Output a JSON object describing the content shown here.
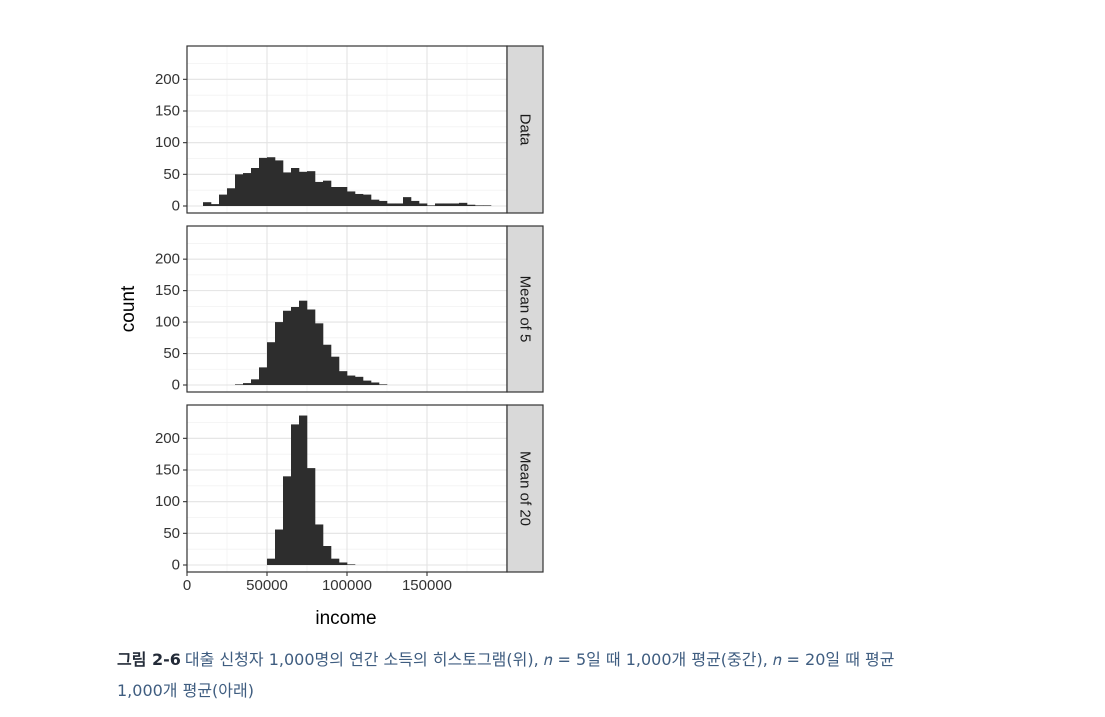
{
  "chart_data": {
    "type": "bar",
    "subtype": "faceted-histogram",
    "xlabel": "income",
    "ylabel": "count",
    "xlim": [
      0,
      200000
    ],
    "ylim": [
      0,
      240
    ],
    "x_ticks": [
      0,
      50000,
      100000,
      150000
    ],
    "x_tick_labels": [
      "0",
      "50000",
      "100000",
      "150000"
    ],
    "y_ticks": [
      0,
      50,
      100,
      150,
      200
    ],
    "y_tick_labels": [
      "0",
      "50",
      "100",
      "150",
      "200"
    ],
    "grid": true,
    "facets": [
      {
        "label": "Data",
        "bin_width": 5000,
        "bins": [
          {
            "x0": 10000,
            "count": 6
          },
          {
            "x0": 15000,
            "count": 3
          },
          {
            "x0": 20000,
            "count": 18
          },
          {
            "x0": 25000,
            "count": 28
          },
          {
            "x0": 30000,
            "count": 50
          },
          {
            "x0": 35000,
            "count": 52
          },
          {
            "x0": 40000,
            "count": 60
          },
          {
            "x0": 45000,
            "count": 76
          },
          {
            "x0": 50000,
            "count": 77
          },
          {
            "x0": 55000,
            "count": 72
          },
          {
            "x0": 60000,
            "count": 53
          },
          {
            "x0": 65000,
            "count": 60
          },
          {
            "x0": 70000,
            "count": 54
          },
          {
            "x0": 75000,
            "count": 55
          },
          {
            "x0": 80000,
            "count": 38
          },
          {
            "x0": 85000,
            "count": 40
          },
          {
            "x0": 90000,
            "count": 30
          },
          {
            "x0": 95000,
            "count": 30
          },
          {
            "x0": 100000,
            "count": 23
          },
          {
            "x0": 105000,
            "count": 19
          },
          {
            "x0": 110000,
            "count": 18
          },
          {
            "x0": 115000,
            "count": 10
          },
          {
            "x0": 120000,
            "count": 8
          },
          {
            "x0": 125000,
            "count": 4
          },
          {
            "x0": 130000,
            "count": 4
          },
          {
            "x0": 135000,
            "count": 14
          },
          {
            "x0": 140000,
            "count": 8
          },
          {
            "x0": 145000,
            "count": 4
          },
          {
            "x0": 150000,
            "count": 1
          },
          {
            "x0": 155000,
            "count": 4
          },
          {
            "x0": 160000,
            "count": 4
          },
          {
            "x0": 165000,
            "count": 4
          },
          {
            "x0": 170000,
            "count": 5
          },
          {
            "x0": 175000,
            "count": 2
          },
          {
            "x0": 180000,
            "count": 1
          },
          {
            "x0": 185000,
            "count": 1
          }
        ]
      },
      {
        "label": "Mean of 5",
        "bin_width": 5000,
        "bins": [
          {
            "x0": 30000,
            "count": 1
          },
          {
            "x0": 35000,
            "count": 3
          },
          {
            "x0": 40000,
            "count": 9
          },
          {
            "x0": 45000,
            "count": 28
          },
          {
            "x0": 50000,
            "count": 68
          },
          {
            "x0": 55000,
            "count": 100
          },
          {
            "x0": 60000,
            "count": 118
          },
          {
            "x0": 65000,
            "count": 124
          },
          {
            "x0": 70000,
            "count": 134
          },
          {
            "x0": 75000,
            "count": 120
          },
          {
            "x0": 80000,
            "count": 98
          },
          {
            "x0": 85000,
            "count": 64
          },
          {
            "x0": 90000,
            "count": 45
          },
          {
            "x0": 95000,
            "count": 22
          },
          {
            "x0": 100000,
            "count": 15
          },
          {
            "x0": 105000,
            "count": 13
          },
          {
            "x0": 110000,
            "count": 7
          },
          {
            "x0": 115000,
            "count": 4
          },
          {
            "x0": 120000,
            "count": 1
          }
        ]
      },
      {
        "label": "Mean of 20",
        "bin_width": 5000,
        "bins": [
          {
            "x0": 50000,
            "count": 10
          },
          {
            "x0": 55000,
            "count": 56
          },
          {
            "x0": 60000,
            "count": 140
          },
          {
            "x0": 65000,
            "count": 222
          },
          {
            "x0": 70000,
            "count": 236
          },
          {
            "x0": 75000,
            "count": 153
          },
          {
            "x0": 80000,
            "count": 64
          },
          {
            "x0": 85000,
            "count": 30
          },
          {
            "x0": 90000,
            "count": 10
          },
          {
            "x0": 95000,
            "count": 4
          },
          {
            "x0": 100000,
            "count": 1
          }
        ]
      }
    ]
  },
  "caption": {
    "label": "그림 2-6",
    "line1": "대출 신청자 1,000명의 연간 소득의 히스토그램(위), 𝑛 = 5일 때 1,000개 평균(중간), 𝑛 = 20일 때 평균",
    "line2": "1,000개 평균(아래)"
  }
}
